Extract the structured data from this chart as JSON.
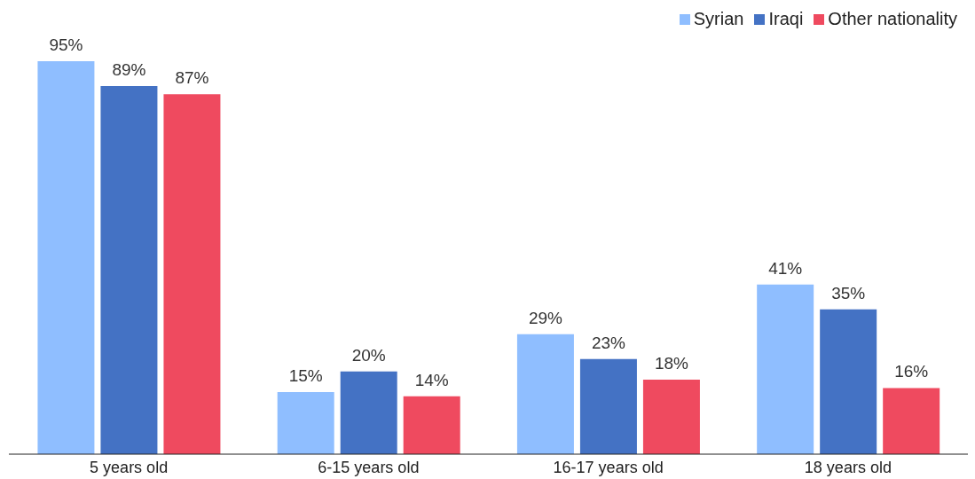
{
  "chart_data": {
    "type": "bar",
    "categories": [
      "5 years old",
      "6-15 years old",
      "16-17 years old",
      "18 years old"
    ],
    "series": [
      {
        "name": "Syrian",
        "color": "#8fbeff",
        "values": [
          95,
          15,
          29,
          41
        ],
        "value_labels": [
          "95%",
          "15%",
          "29%",
          "41%"
        ]
      },
      {
        "name": "Iraqi",
        "color": "#4472c4",
        "values": [
          89,
          20,
          23,
          35
        ],
        "value_labels": [
          "89%",
          "20%",
          "23%",
          "35%"
        ]
      },
      {
        "name": "Other nationality",
        "color": "#ef4a5f",
        "values": [
          87,
          14,
          18,
          16
        ],
        "value_labels": [
          "87%",
          "14%",
          "18%",
          "16%"
        ]
      }
    ],
    "legend": "top right"
  }
}
